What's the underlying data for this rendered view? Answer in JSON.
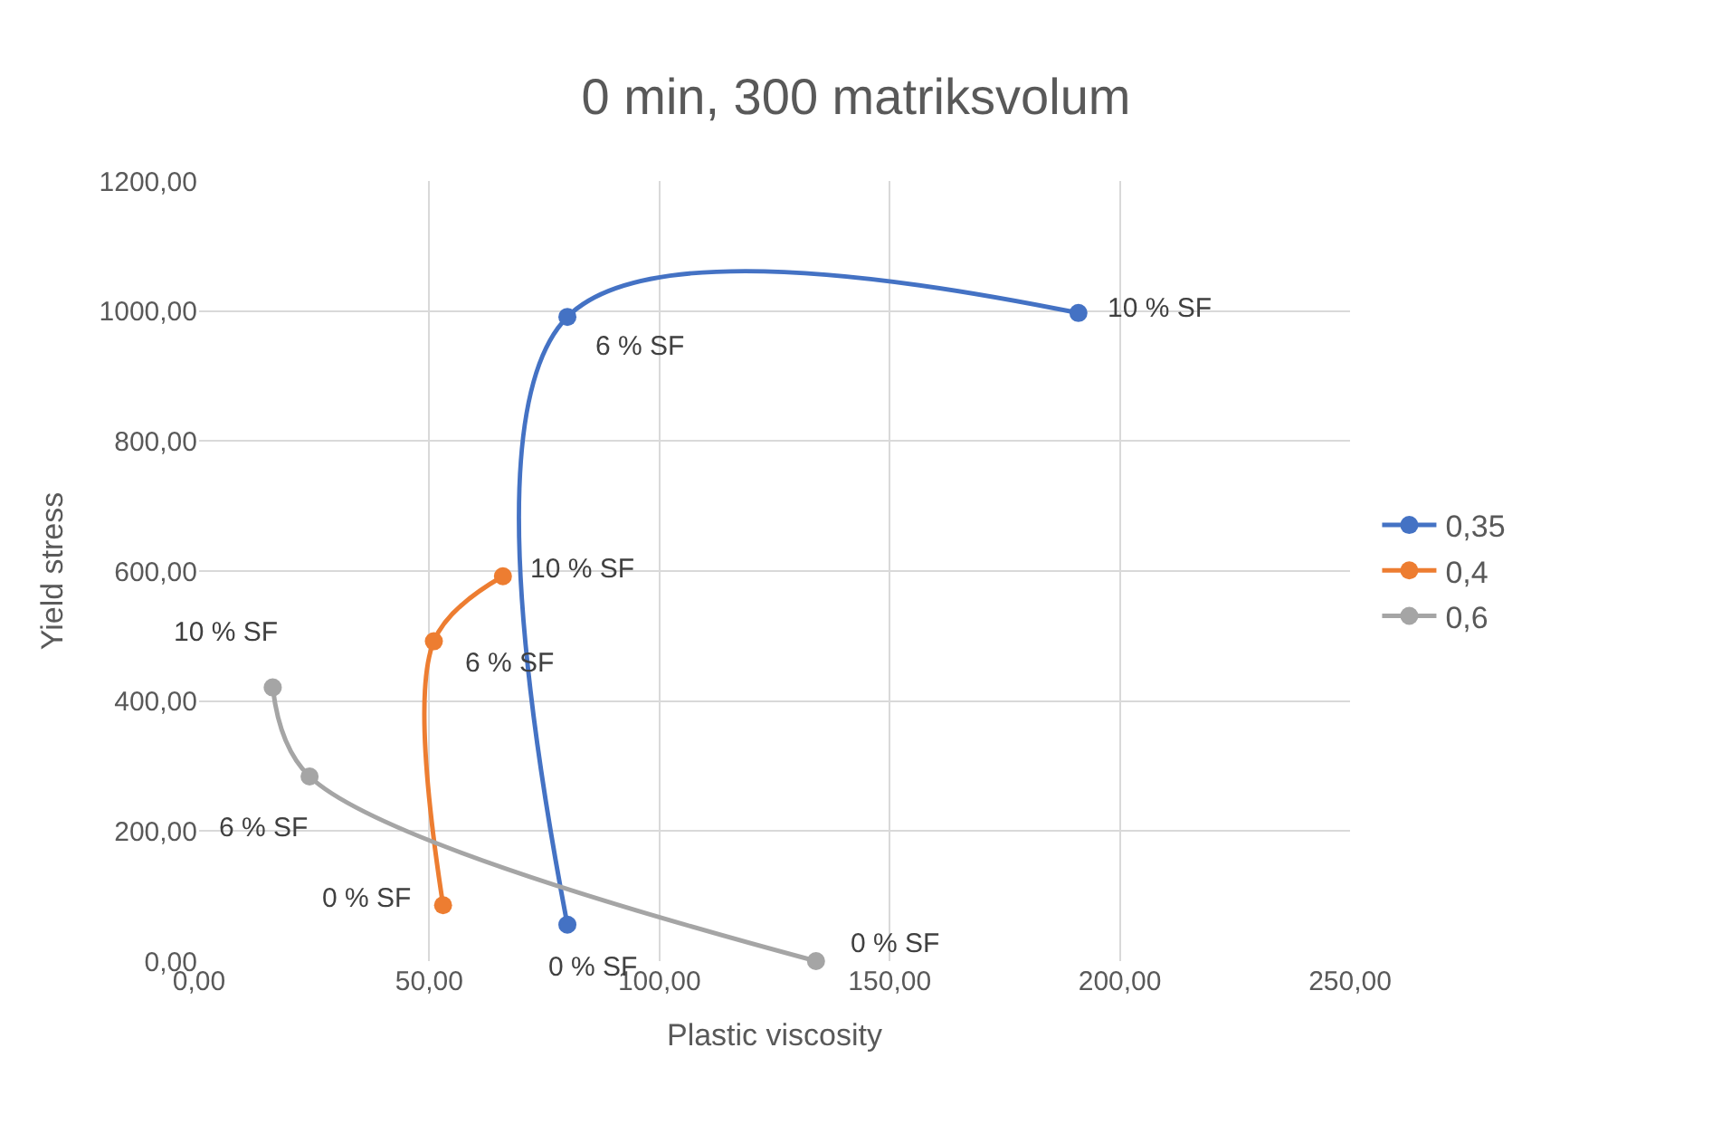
{
  "chart_data": {
    "type": "line",
    "title": "0 min, 300 matriksvolum",
    "xlabel": "Plastic viscosity",
    "ylabel": "Yield stress",
    "series": [
      {
        "name": "0,35",
        "color": "#4472c4",
        "x": [
          80,
          80,
          191
        ],
        "values": [
          56,
          991,
          997
        ]
      },
      {
        "name": "0,4",
        "color": "#ed7d31",
        "x": [
          53,
          51,
          66
        ],
        "values": [
          86,
          492,
          592
        ]
      },
      {
        "name": "0,6",
        "color": "#a5a5a5",
        "x": [
          134,
          24,
          16
        ],
        "values": [
          0,
          284,
          421
        ]
      }
    ],
    "annotations": [
      {
        "text": "0 % SF",
        "x": 80,
        "y": 56
      },
      {
        "text": "6 % SF",
        "x": 80,
        "y": 991
      },
      {
        "text": "10 % SF",
        "x": 191,
        "y": 997
      },
      {
        "text": "0 % SF",
        "x": 53,
        "y": 86
      },
      {
        "text": "6 % SF",
        "x": 51,
        "y": 492
      },
      {
        "text": "10 % SF",
        "x": 66,
        "y": 592
      },
      {
        "text": "0 % SF",
        "x": 134,
        "y": 0
      },
      {
        "text": "6 % SF",
        "x": 24,
        "y": 284
      },
      {
        "text": "10 % SF",
        "x": 16,
        "y": 421
      }
    ],
    "xlim": [
      0,
      250
    ],
    "xticks": [
      {
        "value": 0,
        "label": "0,00"
      },
      {
        "value": 50,
        "label": "50,00"
      },
      {
        "value": 100,
        "label": "100,00"
      },
      {
        "value": 150,
        "label": "150,00"
      },
      {
        "value": 200,
        "label": "200,00"
      },
      {
        "value": 250,
        "label": "250,00"
      }
    ],
    "ylim": [
      0,
      1200
    ],
    "yticks": [
      {
        "value": 0,
        "label": "0,00"
      },
      {
        "value": 200,
        "label": "200,00"
      },
      {
        "value": 400,
        "label": "400,00"
      },
      {
        "value": 600,
        "label": "600,00"
      },
      {
        "value": 800,
        "label": "800,00"
      },
      {
        "value": 1000,
        "label": "1000,00"
      },
      {
        "value": 1200,
        "label": "1200,00"
      }
    ],
    "grid": true,
    "legend": "right",
    "marker": "circle",
    "line_style": "solid"
  }
}
